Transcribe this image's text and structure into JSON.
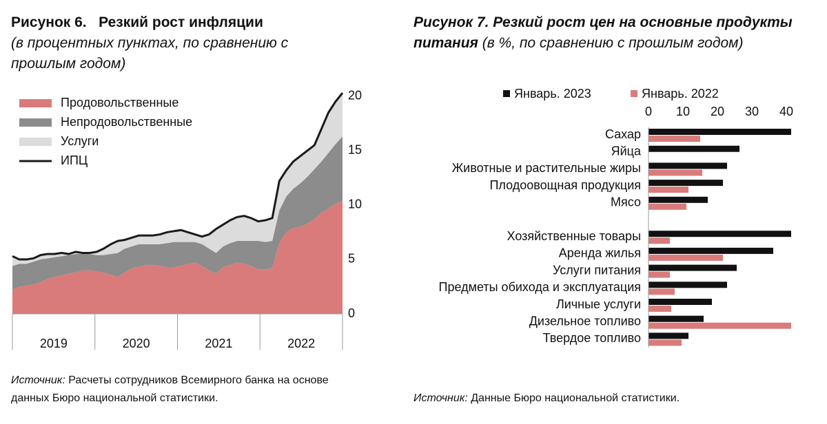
{
  "chart_data": [
    {
      "type": "stacked_area",
      "title": "Рисунок 6.   Резкий рост инфляции",
      "subtitle": "(в процентных пунктах, по сравнению с прошлым годом)",
      "source_label": "Источник:",
      "source": "Расчеты сотрудников Всемирного банка на основе данных Бюро национальной статистики.",
      "year_labels": [
        "2019",
        "2020",
        "2021",
        "2022"
      ],
      "ylim": [
        0,
        20.3
      ],
      "yticks": [
        0,
        5,
        10,
        15,
        20
      ],
      "series": [
        {
          "name": "Продовольственные",
          "color": "#d97b7b",
          "values": [
            2.2,
            2.5,
            2.6,
            2.7,
            2.9,
            3.2,
            3.4,
            3.5,
            3.7,
            3.8,
            4.0,
            4.0,
            3.9,
            3.8,
            3.6,
            3.4,
            3.8,
            4.2,
            4.3,
            4.5,
            4.5,
            4.4,
            4.3,
            4.3,
            4.4,
            4.6,
            4.7,
            4.4,
            4.0,
            3.7,
            4.3,
            4.5,
            4.7,
            4.6,
            4.4,
            4.1,
            4.1,
            4.2,
            6.5,
            7.5,
            7.9,
            8.0,
            8.3,
            8.7,
            9.3,
            9.7,
            10.1,
            10.4
          ]
        },
        {
          "name": "Непродовольственные",
          "color": "#8c8c8c",
          "values": [
            2.2,
            2.1,
            2.0,
            2.1,
            2.1,
            1.9,
            1.8,
            1.8,
            1.7,
            1.7,
            1.5,
            1.5,
            1.5,
            1.6,
            1.9,
            2.2,
            2.2,
            2.0,
            2.1,
            1.9,
            1.9,
            2.0,
            2.2,
            2.3,
            2.2,
            2.0,
            1.9,
            2.0,
            2.0,
            1.9,
            1.9,
            2.0,
            2.0,
            2.1,
            2.3,
            2.6,
            2.5,
            2.5,
            3.0,
            3.3,
            3.6,
            4.0,
            4.3,
            4.6,
            4.7,
            5.1,
            5.5,
            5.9
          ]
        },
        {
          "name": "Услуги",
          "color": "#dcdcdc",
          "values": [
            0.9,
            0.4,
            0.4,
            0.3,
            0.4,
            0.4,
            0.3,
            0.3,
            0.1,
            0.2,
            0.1,
            0.1,
            0.3,
            0.6,
            0.9,
            1.1,
            0.8,
            0.8,
            0.8,
            0.8,
            0.8,
            0.9,
            1.0,
            1.0,
            1.1,
            0.9,
            0.7,
            0.7,
            1.3,
            2.2,
            2.0,
            2.1,
            2.2,
            2.3,
            2.1,
            1.8,
            2.0,
            2.1,
            2.7,
            2.4,
            2.5,
            2.5,
            2.4,
            2.2,
            3.0,
            3.7,
            3.9,
            4.0
          ]
        },
        {
          "name": "ИПЦ",
          "color": "#1a1a1a",
          "kind": "line",
          "values": [
            5.3,
            5.0,
            5.0,
            5.1,
            5.4,
            5.5,
            5.5,
            5.6,
            5.5,
            5.7,
            5.6,
            5.6,
            5.7,
            6.0,
            6.4,
            6.7,
            6.8,
            7.0,
            7.2,
            7.2,
            7.2,
            7.3,
            7.5,
            7.6,
            7.7,
            7.5,
            7.3,
            7.1,
            7.3,
            7.8,
            8.2,
            8.6,
            8.9,
            9.0,
            8.8,
            8.5,
            8.6,
            8.8,
            12.2,
            13.2,
            14.0,
            14.5,
            15.0,
            15.5,
            17.0,
            18.5,
            19.5,
            20.3
          ]
        }
      ]
    },
    {
      "type": "hbar",
      "title": "Рисунок 7. Резкий рост цен на основные продукты питания",
      "subtitle": "(в %, по сравнению с прошлым годом)",
      "source_label": "Источник:",
      "source": "Данные Бюро национальной статистики.",
      "categories": [
        "Сахар",
        "Яйца",
        "Животные и растительные жиры",
        "Плодоовощная продукция",
        "Мясо",
        null,
        "Хозяйственные товары",
        "Аренда жилья",
        "Услуги питания",
        "Предметы обихода и эксплуатация",
        "Личные услуги",
        "Дизельное топливо",
        "Твердое топливо"
      ],
      "xlim": [
        0,
        41.5
      ],
      "xticks": [
        0,
        10,
        20,
        30,
        40
      ],
      "series": [
        {
          "name": "Январь. 2023",
          "color": "#111111",
          "values": [
            41.4,
            26.4,
            22.8,
            21.6,
            17.2,
            null,
            41.4,
            36.2,
            25.6,
            22.8,
            18.4,
            16,
            11.6
          ]
        },
        {
          "name": "Январь. 2022",
          "color": "#d97b7b",
          "values": [
            15,
            null,
            15.6,
            11.6,
            11,
            null,
            6.2,
            21.6,
            6.2,
            7.6,
            6.6,
            41.4,
            9.6
          ]
        }
      ]
    }
  ]
}
